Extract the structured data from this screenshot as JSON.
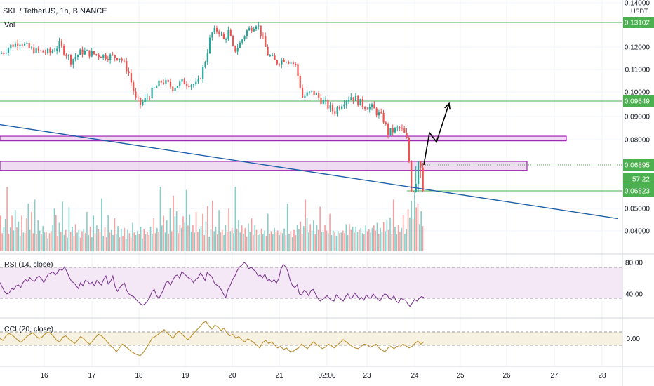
{
  "header": {
    "title": "SKL / TetherUS, 1h, BINANCE"
  },
  "axis_unit": "USDT",
  "panes": {
    "volume": "Vol",
    "rsi": "RSI (14, close)",
    "cci": "CCI (20, close)"
  },
  "colors": {
    "up": "#26a69a",
    "down": "#ef5350",
    "level": "#4caf50",
    "box": "#9c27b0",
    "trendline": "#1e5fa6",
    "rsi": "#7e3b91",
    "cci": "#b8902f"
  },
  "chart_data": {
    "type": "candlestick",
    "symbol": "SKL / TetherUS",
    "interval": "1h",
    "exchange": "BINANCE",
    "x_ticks": [
      "16",
      "17",
      "18",
      "19",
      "20",
      "21",
      "02:00",
      "23",
      "24",
      "25",
      "26",
      "27",
      "28"
    ],
    "y_ticks": [
      "0.14000",
      "0.12000",
      "0.11000",
      "0.10000",
      "0.09000",
      "0.08000",
      "0.05000",
      "0.04000"
    ],
    "price_labels": [
      {
        "value": "0.13102",
        "kind": "level"
      },
      {
        "value": "0.09649",
        "kind": "level"
      },
      {
        "value": "0.06895",
        "kind": "last"
      },
      {
        "value": "57:22",
        "kind": "countdown"
      },
      {
        "value": "0.06823",
        "kind": "level"
      }
    ],
    "horizontal_levels": [
      0.13102,
      0.09649,
      0.06823
    ],
    "zones": [
      {
        "from": 0.0795,
        "to": 0.0815
      },
      {
        "from": 0.0688,
        "to": 0.0705
      }
    ],
    "close_path": [
      [
        0,
        0.117
      ],
      [
        14,
        0.1205
      ],
      [
        28,
        0.1225
      ],
      [
        42,
        0.119
      ],
      [
        56,
        0.118
      ],
      [
        70,
        0.1175
      ],
      [
        84,
        0.121
      ],
      [
        100,
        0.114
      ],
      [
        115,
        0.118
      ],
      [
        130,
        0.117
      ],
      [
        150,
        0.116
      ],
      [
        170,
        0.1155
      ],
      [
        182,
        0.109
      ],
      [
        192,
        0.097
      ],
      [
        200,
        0.095
      ],
      [
        215,
        0.1
      ],
      [
        230,
        0.105
      ],
      [
        245,
        0.102
      ],
      [
        260,
        0.1045
      ],
      [
        280,
        0.103
      ],
      [
        290,
        0.112
      ],
      [
        300,
        0.126
      ],
      [
        310,
        0.128
      ],
      [
        318,
        0.123
      ],
      [
        325,
        0.127
      ],
      [
        332,
        0.118
      ],
      [
        340,
        0.121
      ],
      [
        350,
        0.127
      ],
      [
        358,
        0.129
      ],
      [
        365,
        0.131
      ],
      [
        372,
        0.125
      ],
      [
        380,
        0.117
      ],
      [
        392,
        0.113
      ],
      [
        405,
        0.115
      ],
      [
        420,
        0.112
      ],
      [
        430,
        0.098
      ],
      [
        445,
        0.1
      ],
      [
        460,
        0.096
      ],
      [
        475,
        0.092
      ],
      [
        490,
        0.097
      ],
      [
        500,
        0.0985
      ],
      [
        515,
        0.095
      ],
      [
        530,
        0.0935
      ],
      [
        545,
        0.089
      ],
      [
        552,
        0.083
      ],
      [
        560,
        0.084
      ],
      [
        570,
        0.085
      ],
      [
        578,
        0.081
      ],
      [
        582,
        0.07
      ],
      [
        588,
        0.068
      ],
      [
        595,
        0.071
      ],
      [
        600,
        0.0695
      ],
      [
        604,
        0.069
      ]
    ],
    "projection": [
      [
        604,
        0.069
      ],
      [
        612,
        0.083
      ],
      [
        622,
        0.079
      ],
      [
        640,
        0.0955
      ]
    ],
    "trendline": [
      [
        0,
        0.0865
      ],
      [
        880,
        0.0455
      ]
    ],
    "volume": [
      0.55,
      0.28,
      0.37,
      0.5,
      1.0,
      0.27,
      0.37,
      0.55,
      0.32,
      0.64,
      0.37,
      0.46,
      0.24,
      0.55,
      0.29,
      0.28,
      0.51,
      0.74,
      0.33,
      0.61,
      0.28,
      0.8,
      0.26,
      0.48,
      0.32,
      0.27,
      0.39,
      0.29,
      0.3,
      0.2,
      0.28,
      0.31,
      0.41,
      0.66,
      0.56,
      0.24,
      0.44,
      0.3,
      0.77,
      0.25,
      0.33,
      0.21,
      0.68,
      0.3,
      0.38,
      0.24,
      0.42,
      0.29,
      0.33,
      0.21,
      0.31,
      0.35,
      0.28,
      0.61,
      0.25,
      0.38,
      0.22,
      0.55,
      0.28,
      0.4,
      0.34,
      0.3,
      0.82,
      0.24,
      0.37,
      0.22,
      0.56,
      0.29,
      0.33,
      0.25,
      0.51,
      0.26,
      0.39,
      0.22,
      0.35,
      0.24,
      0.36,
      0.19,
      0.33,
      0.28,
      0.21,
      0.44,
      0.29,
      0.25,
      0.31,
      0.27,
      0.38,
      0.2,
      0.34,
      0.26,
      0.3,
      0.25,
      0.38,
      0.27,
      0.51,
      0.28,
      0.36,
      0.3,
      1.0,
      0.4,
      0.55,
      0.29,
      0.48,
      0.27,
      0.67,
      0.31,
      0.86,
      0.54,
      0.62,
      0.28,
      0.41,
      0.36,
      0.54,
      0.44,
      0.95,
      0.4,
      0.57,
      0.3,
      0.41,
      0.29,
      0.61,
      0.3,
      0.34,
      0.39,
      0.58,
      0.25,
      0.46,
      0.7,
      0.23,
      0.34,
      0.78,
      0.31,
      0.38,
      0.26,
      0.64,
      0.29,
      0.33,
      0.25,
      0.41,
      0.3,
      0.66,
      0.31,
      0.36,
      0.28,
      1.0,
      0.35,
      0.48,
      0.29,
      0.4,
      0.27,
      0.36,
      0.23,
      0.43,
      0.3,
      0.51,
      0.25,
      0.4,
      0.33,
      0.25,
      0.27,
      0.35,
      0.26,
      0.32,
      0.24,
      0.58,
      0.27,
      0.31,
      0.26,
      0.36,
      0.3,
      0.32,
      0.25,
      0.3,
      0.28,
      0.35,
      0.25,
      0.74,
      0.27,
      0.31,
      0.22,
      0.33,
      0.25,
      0.41,
      0.34,
      0.46,
      0.27,
      0.39,
      0.8,
      0.52,
      0.29,
      0.42,
      0.32,
      0.48,
      0.26,
      0.41,
      0.33,
      0.69,
      0.3,
      0.3,
      0.41,
      0.32,
      0.28,
      0.58,
      0.25,
      0.32,
      0.29,
      0.24,
      0.31,
      0.28,
      0.29,
      0.32,
      0.28,
      0.42,
      0.25,
      0.42,
      0.33,
      0.38,
      0.29,
      0.38,
      0.3,
      0.33,
      0.36,
      0.28,
      0.26,
      0.4,
      0.31,
      0.34,
      0.29,
      0.36,
      0.4,
      0.32,
      0.44,
      0.27,
      0.36,
      0.3,
      0.45,
      0.31,
      0.48,
      0.33,
      0.52,
      0.26,
      0.8,
      0.38,
      0.26,
      0.41,
      0.3,
      0.36,
      0.56,
      0.27,
      0.34,
      0.65,
      0.52,
      0.78,
      0.5,
      0.92,
      0.68,
      0.74,
      0.42,
      0.62,
      0.39
    ],
    "rsi": {
      "levels": [
        "80.00",
        "40.00"
      ],
      "values": [
        0.55,
        0.45,
        0.35,
        0.3,
        0.32,
        0.42,
        0.4,
        0.48,
        0.5,
        0.44,
        0.55,
        0.62,
        0.58,
        0.66,
        0.6,
        0.58,
        0.66,
        0.7,
        0.64,
        0.55,
        0.66,
        0.74,
        0.76,
        0.8,
        0.72,
        0.78,
        0.86,
        0.82,
        0.9,
        0.8,
        0.68,
        0.58,
        0.55,
        0.49,
        0.42,
        0.55,
        0.48,
        0.6,
        0.58,
        0.52,
        0.56,
        0.48,
        0.6,
        0.55,
        0.5,
        0.62,
        0.7,
        0.52,
        0.58,
        0.7,
        0.46,
        0.36,
        0.44,
        0.5,
        0.54,
        0.38,
        0.3,
        0.26,
        0.24,
        0.18,
        0.12,
        0.08,
        0.05,
        0.08,
        0.14,
        0.22,
        0.36,
        0.4,
        0.26,
        0.2,
        0.3,
        0.4,
        0.55,
        0.58,
        0.5,
        0.6,
        0.7,
        0.72,
        0.65,
        0.8,
        0.74,
        0.7,
        0.65,
        0.63,
        0.55,
        0.62,
        0.66,
        0.76,
        0.7,
        0.6,
        0.78,
        0.72,
        0.68,
        0.55,
        0.5,
        0.47,
        0.4,
        0.3,
        0.22,
        0.4,
        0.5,
        0.62,
        0.7,
        0.82,
        0.9,
        0.94,
        1.0,
        0.96,
        0.86,
        0.9,
        0.84,
        0.8,
        0.7,
        0.72,
        0.66,
        0.74,
        0.6,
        0.62,
        0.56,
        0.62,
        0.54,
        0.64,
        0.86,
        0.96,
        0.9,
        0.8,
        0.6,
        0.48,
        0.44,
        0.5,
        0.3,
        0.28,
        0.38,
        0.34,
        0.26,
        0.38,
        0.4,
        0.3,
        0.2,
        0.14,
        0.18,
        0.22,
        0.26,
        0.2,
        0.16,
        0.14,
        0.28,
        0.22,
        0.18,
        0.14,
        0.24,
        0.3,
        0.2,
        0.22,
        0.32,
        0.26,
        0.18,
        0.22,
        0.16,
        0.28,
        0.22,
        0.2,
        0.3,
        0.24,
        0.18,
        0.14,
        0.24,
        0.3,
        0.28,
        0.2,
        0.18,
        0.26,
        0.14,
        0.1,
        0.2,
        0.18,
        0.16,
        0.08,
        0.02,
        0.1,
        0.18,
        0.14,
        0.2,
        0.24,
        0.22
      ]
    },
    "cci": {
      "levels": [
        "0.00"
      ],
      "values": [
        0.55,
        0.5,
        0.62,
        0.68,
        0.64,
        0.58,
        0.5,
        0.45,
        0.52,
        0.6,
        0.66,
        0.7,
        0.62,
        0.55,
        0.58,
        0.66,
        0.72,
        0.68,
        0.6,
        0.5,
        0.46,
        0.58,
        0.62,
        0.54,
        0.48,
        0.42,
        0.5,
        0.6,
        0.55,
        0.46,
        0.4,
        0.48,
        0.58,
        0.66,
        0.62,
        0.54,
        0.46,
        0.36,
        0.3,
        0.2,
        0.3,
        0.4,
        0.34,
        0.28,
        0.2,
        0.16,
        0.12,
        0.1,
        0.18,
        0.3,
        0.42,
        0.56,
        0.6,
        0.66,
        0.72,
        0.78,
        0.7,
        0.62,
        0.55,
        0.68,
        0.74,
        0.66,
        0.58,
        0.52,
        0.6,
        0.7,
        0.78,
        0.86,
        0.96,
        1.0,
        0.88,
        0.8,
        0.9,
        0.86,
        0.76,
        0.82,
        0.7,
        0.62,
        0.66,
        0.56,
        0.6,
        0.52,
        0.46,
        0.54,
        0.5,
        0.44,
        0.38,
        0.3,
        0.44,
        0.5,
        0.42,
        0.46,
        0.38,
        0.3,
        0.34,
        0.26,
        0.3,
        0.22,
        0.2,
        0.26,
        0.3,
        0.4,
        0.34,
        0.28,
        0.38,
        0.46,
        0.4,
        0.34,
        0.28,
        0.32,
        0.4,
        0.36,
        0.3,
        0.38,
        0.44,
        0.52,
        0.46,
        0.4,
        0.34,
        0.3,
        0.28,
        0.34,
        0.4,
        0.38,
        0.32,
        0.36,
        0.4,
        0.3,
        0.24,
        0.2,
        0.3,
        0.34,
        0.28,
        0.34,
        0.32,
        0.4,
        0.36,
        0.3,
        0.34,
        0.42,
        0.48,
        0.4,
        0.46
      ]
    }
  }
}
